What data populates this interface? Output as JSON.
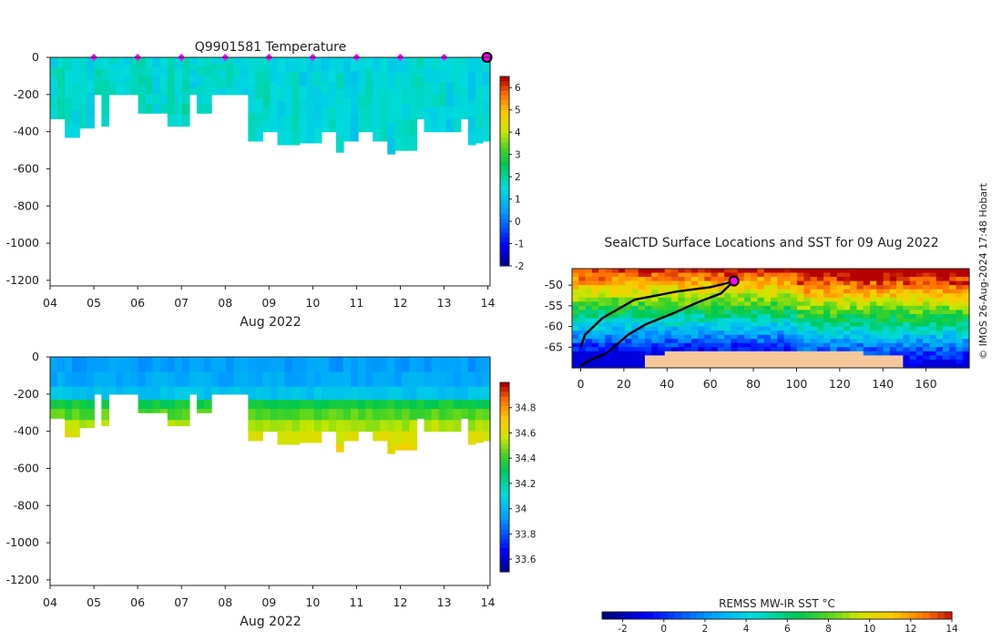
{
  "chart_data": [
    {
      "type": "heatmap",
      "id": "temperature",
      "title": "Q9901581  Temperature",
      "x_ticks": [
        "04",
        "05",
        "06",
        "07",
        "08",
        "09",
        "10",
        "11",
        "12",
        "13",
        "14"
      ],
      "xlabel": "Aug 2022",
      "y_ticks": [
        0,
        -200,
        -400,
        -600,
        -800,
        -1000,
        -1200
      ],
      "ylim": [
        -1230,
        0
      ],
      "xlim": [
        4,
        14.05
      ],
      "colorbar": {
        "min": -2,
        "max": 6.5,
        "ticks": [
          6,
          5,
          4,
          3,
          2,
          1,
          0,
          -1,
          -2
        ]
      },
      "surface_markers": [
        5,
        6,
        7,
        8,
        9,
        10,
        11,
        12,
        13
      ],
      "current_marker": 14,
      "profiles_max_depth": [
        330,
        330,
        430,
        430,
        380,
        380,
        200,
        370,
        200,
        200,
        200,
        200,
        300,
        300,
        300,
        300,
        370,
        370,
        370,
        200,
        300,
        300,
        200,
        200,
        200,
        200,
        200,
        450,
        450,
        400,
        400,
        470,
        470,
        470,
        460,
        460,
        460,
        400,
        400,
        510,
        450,
        450,
        400,
        400,
        450,
        450,
        520,
        500,
        500,
        500,
        330,
        400,
        400,
        400,
        400,
        400,
        330,
        470,
        460,
        450
      ],
      "profiles_value": [
        1.6,
        1.9,
        1.7,
        1.5,
        1.6,
        1.4,
        1.8,
        1.9,
        1.7,
        1.6,
        1.5,
        1.8,
        1.9,
        1.8,
        1.5,
        1.6,
        1.8,
        1.7,
        1.9,
        1.5,
        1.6,
        1.8,
        1.7,
        1.6,
        1.7,
        1.5,
        1.4,
        1.6,
        1.7,
        1.8,
        1.5,
        1.5,
        1.6,
        1.7,
        1.4,
        1.6,
        1.5,
        1.4,
        1.6,
        1.7,
        1.5,
        1.4,
        1.6,
        1.7,
        1.5,
        1.6,
        1.4,
        1.5,
        1.6,
        1.7,
        1.8,
        1.5,
        1.6,
        1.7,
        1.4,
        1.6,
        1.5,
        1.4,
        1.6,
        1.5
      ]
    },
    {
      "type": "heatmap",
      "id": "salinity",
      "title": "",
      "x_ticks": [
        "04",
        "05",
        "06",
        "07",
        "08",
        "09",
        "10",
        "11",
        "12",
        "13",
        "14"
      ],
      "xlabel": "Aug 2022",
      "y_ticks": [
        0,
        -200,
        -400,
        -600,
        -800,
        -1000,
        -1200
      ],
      "ylim": [
        -1230,
        0
      ],
      "xlim": [
        4,
        14.05
      ],
      "colorbar": {
        "min": 33.5,
        "max": 35.0,
        "ticks": [
          34.8,
          34.6,
          34.4,
          34.2,
          34,
          33.8,
          33.6
        ]
      }
    },
    {
      "type": "heatmap",
      "id": "sst_map",
      "title": "SealCTD Surface Locations and SST for 09 Aug 2022",
      "x_ticks": [
        0,
        20,
        40,
        60,
        80,
        100,
        120,
        140,
        160
      ],
      "y_ticks": [
        -50,
        -55,
        -60,
        -65
      ],
      "xlim": [
        -4,
        180
      ],
      "ylim": [
        -70,
        -46
      ],
      "colorbar_label": "REMSS MW-IR SST °C",
      "colorbar": {
        "min": -3,
        "max": 14,
        "ticks": [
          -2,
          0,
          2,
          4,
          6,
          8,
          10,
          12,
          14
        ]
      },
      "current_position": [
        71,
        -49
      ]
    }
  ],
  "watermark": "© IMOS 26-Aug-2024 17:48 Hobart"
}
